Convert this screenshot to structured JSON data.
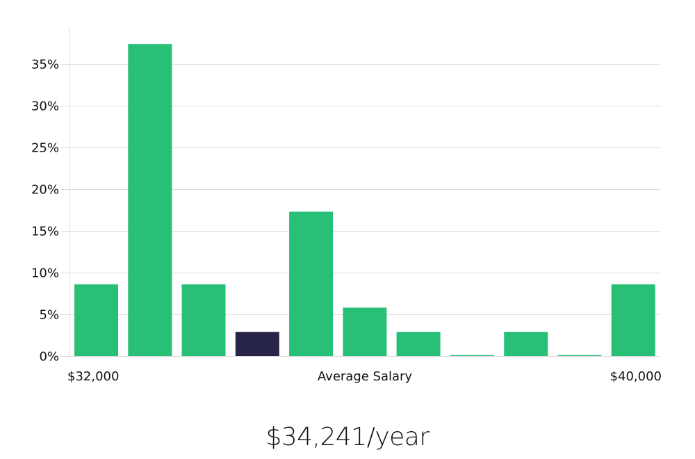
{
  "chart_data": {
    "type": "bar",
    "values": [
      8.6,
      37.4,
      8.6,
      2.9,
      17.3,
      5.8,
      2.9,
      0,
      2.9,
      0,
      8.6
    ],
    "highlight_index": 3,
    "ylim": [
      0,
      35
    ],
    "yticks": [
      "0%",
      "5%",
      "10%",
      "15%",
      "20%",
      "25%",
      "30%",
      "35%"
    ],
    "x_min_label": "$32,000",
    "x_max_label": "$40,000",
    "xlabel": "Average Salary",
    "grid": true,
    "colors": {
      "bar": "#28bf77",
      "highlight": "#272547",
      "grid": "#dcdcdc"
    }
  },
  "salary_display": "$34,241/year"
}
